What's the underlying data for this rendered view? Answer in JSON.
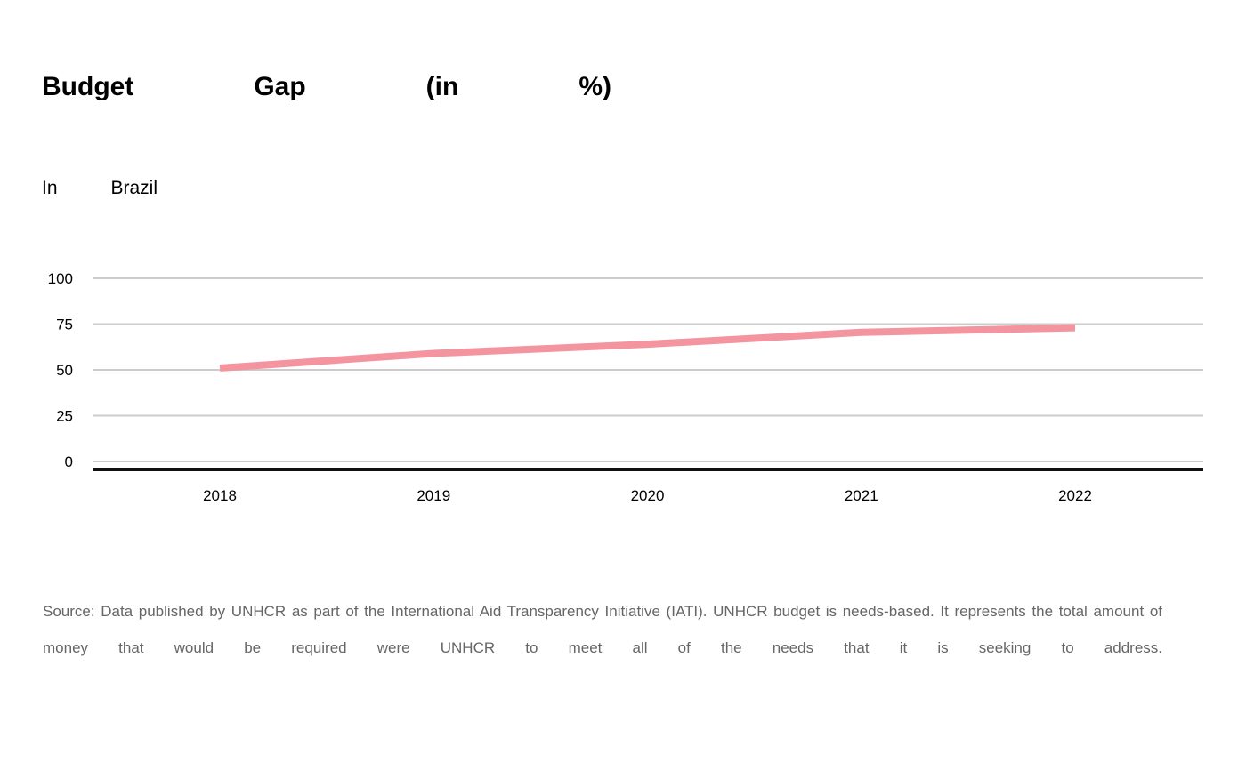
{
  "header": {
    "title": "Budget Gap (in %)",
    "subtitle": "In Brazil"
  },
  "colors": {
    "line": "#f4949e",
    "grid": "#cccccc",
    "baseline": "#111111"
  },
  "chart_data": {
    "type": "line",
    "title": "Budget Gap (in %)",
    "subtitle": "In Brazil",
    "x": [
      "2018",
      "2019",
      "2020",
      "2021",
      "2022"
    ],
    "series": [
      {
        "values": [
          51,
          59,
          64,
          70.5,
          73
        ]
      }
    ],
    "ylim": [
      0,
      100
    ],
    "yticks": [
      0,
      25,
      50,
      75,
      100
    ],
    "xlabel": "",
    "ylabel": "",
    "grid": true
  },
  "footer": {
    "source": "Source: Data published by UNHCR as part of the International Aid Transparency Initiative (IATI). UNHCR budget is needs-based. It represents the total amount of money that would be required were UNHCR to meet all of the needs that it is seeking to address."
  }
}
